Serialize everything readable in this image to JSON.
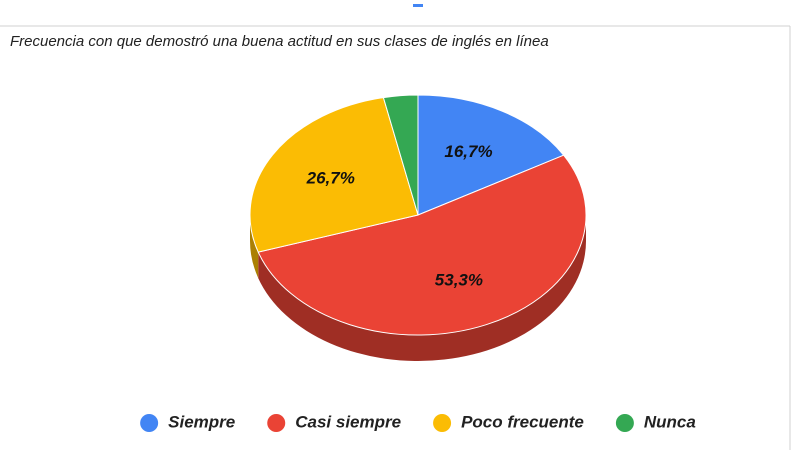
{
  "chart_data": {
    "type": "pie",
    "title": "Frecuencia con que demostró una buena actitud en sus clases de inglés en línea",
    "categories": [
      "Siempre",
      "Casi siempre",
      "Poco frecuente",
      "Nunca"
    ],
    "values": [
      16.7,
      53.3,
      26.7,
      3.3
    ],
    "value_labels": [
      "16,7%",
      "53,3%",
      "26,7%",
      null
    ],
    "colors": [
      "#4285f4",
      "#ea4335",
      "#fbbc04",
      "#34a853"
    ],
    "legend": "bottom"
  }
}
